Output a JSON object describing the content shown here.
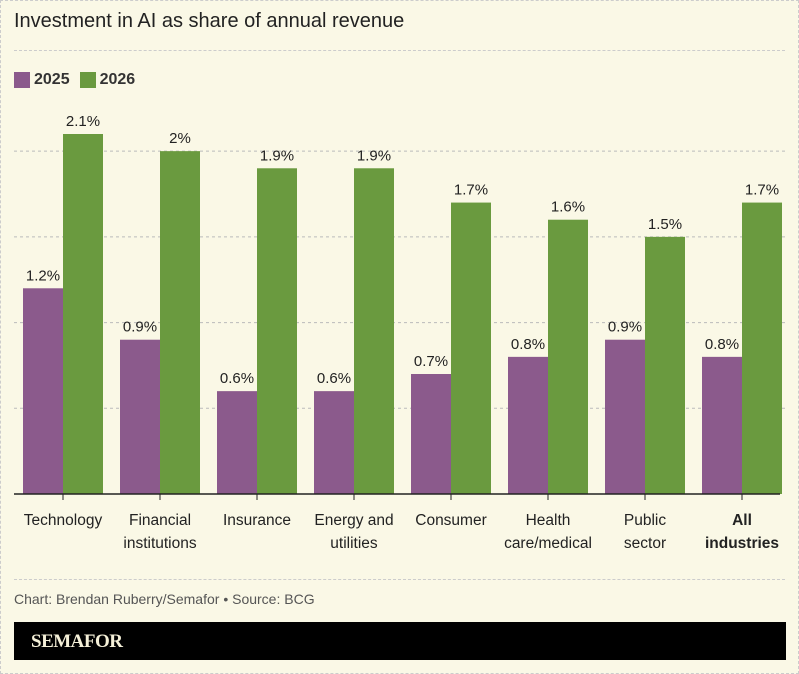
{
  "chart_data": {
    "type": "bar",
    "title": "Investment in AI as share of annual revenue",
    "categories": [
      [
        "Technology"
      ],
      [
        "Financial",
        "institutions"
      ],
      [
        "Insurance"
      ],
      [
        "Energy and",
        "utilities"
      ],
      [
        "Consumer"
      ],
      [
        "Health",
        "care/medical"
      ],
      [
        "Public",
        "sector"
      ],
      [
        "All",
        "industries"
      ]
    ],
    "bold_categories": [
      7
    ],
    "series": [
      {
        "name": "2025",
        "color": "#8b5a8c",
        "values": [
          1.2,
          0.9,
          0.6,
          0.6,
          0.7,
          0.8,
          0.9,
          0.8
        ],
        "labels": [
          "1.2%",
          "0.9%",
          "0.6%",
          "0.6%",
          "0.7%",
          "0.8%",
          "0.9%",
          "0.8%"
        ]
      },
      {
        "name": "2026",
        "color": "#6a9a3f",
        "values": [
          2.1,
          2.0,
          1.9,
          1.9,
          1.7,
          1.6,
          1.5,
          1.7
        ],
        "labels": [
          "2.1%",
          "2%",
          "1.9%",
          "1.9%",
          "1.7%",
          "1.6%",
          "1.5%",
          "1.7%"
        ]
      }
    ],
    "ylim": [
      0,
      2.1
    ],
    "gridlines": [
      0.5,
      1.0,
      1.5,
      2.0
    ],
    "grid": true,
    "legend": "top-left",
    "xlabel": "",
    "ylabel": ""
  },
  "source": "Chart: Brendan Ruberry/Semafor • Source: BCG",
  "brand": "SEMAFOR"
}
